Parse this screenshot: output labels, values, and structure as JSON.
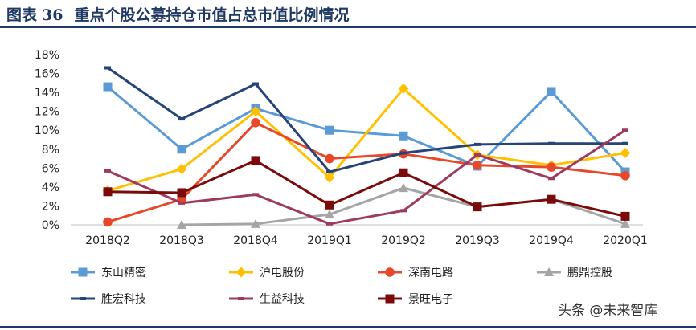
{
  "figure": {
    "label": "图表",
    "number": "36",
    "title": "重点个股公募持仓市值占总市值比例情况"
  },
  "watermark": "头条 @未来智库",
  "chart_data": {
    "type": "line",
    "categories": [
      "2018Q2",
      "2018Q3",
      "2018Q4",
      "2019Q1",
      "2019Q2",
      "2019Q3",
      "2019Q4",
      "2020Q1"
    ],
    "y_ticks": [
      "0%",
      "2%",
      "4%",
      "6%",
      "8%",
      "10%",
      "12%",
      "14%",
      "16%",
      "18%"
    ],
    "ylim": [
      0,
      18
    ],
    "grid": false,
    "legend_position": "bottom",
    "series": [
      {
        "name": "东山精密",
        "color": "#5b9bd5",
        "marker": "square",
        "values": [
          14.6,
          8.0,
          12.3,
          10.0,
          9.4,
          6.2,
          14.1,
          5.6
        ]
      },
      {
        "name": "沪电股份",
        "color": "#ffc000",
        "marker": "diamond",
        "values": [
          3.6,
          5.9,
          12.0,
          5.0,
          14.4,
          7.4,
          6.3,
          7.6
        ]
      },
      {
        "name": "深南电路",
        "color": "#e8482a",
        "marker": "circle",
        "values": [
          0.3,
          2.7,
          10.8,
          7.0,
          7.5,
          6.3,
          6.1,
          5.2
        ]
      },
      {
        "name": "鹏鼎控股",
        "color": "#a5a5a5",
        "marker": "triangle",
        "values": [
          null,
          0.0,
          0.1,
          1.1,
          3.9,
          1.9,
          2.7,
          0.1
        ]
      },
      {
        "name": "胜宏科技",
        "color": "#264478",
        "marker": "dash",
        "values": [
          16.6,
          11.2,
          14.9,
          5.6,
          7.6,
          8.5,
          8.6,
          8.6
        ]
      },
      {
        "name": "生益科技",
        "color": "#9e3a5e",
        "marker": "dash",
        "values": [
          5.7,
          2.3,
          3.2,
          0.1,
          1.5,
          7.4,
          4.9,
          10.0
        ]
      },
      {
        "name": "景旺电子",
        "color": "#7b0b0b",
        "marker": "square",
        "values": [
          3.5,
          3.4,
          6.8,
          2.1,
          5.5,
          1.9,
          2.7,
          0.9
        ]
      }
    ]
  }
}
